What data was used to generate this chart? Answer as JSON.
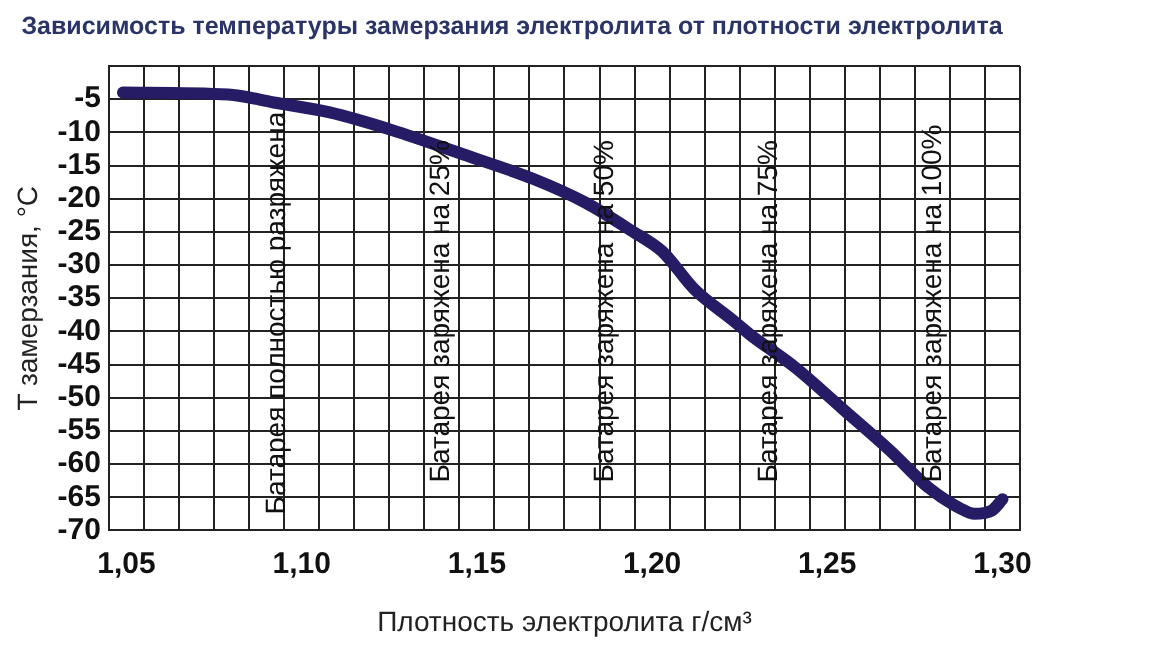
{
  "chart_data": {
    "type": "line",
    "title": "Зависимость температуры замерзания электролита от плотности электролита",
    "xlabel": "Плотность электролита г/см³",
    "ylabel": "T замерзания, °С",
    "x": [
      1.049,
      1.079,
      1.092,
      1.108,
      1.126,
      1.146,
      1.166,
      1.181,
      1.194,
      1.203,
      1.212,
      1.223,
      1.228,
      1.241,
      1.254,
      1.268,
      1.279,
      1.288,
      1.292,
      1.297,
      1.3
    ],
    "series": [
      {
        "color": "#261c66",
        "values": [
          -4,
          -4.3,
          -5.5,
          -7,
          -9.7,
          -13.3,
          -17,
          -20.6,
          -24.8,
          -28,
          -33.6,
          -38.3,
          -40.5,
          -45.5,
          -51.5,
          -58,
          -63.6,
          -66.7,
          -67.5,
          -67,
          -65.3
        ]
      }
    ],
    "xlim": [
      1.045,
      1.305
    ],
    "xticks": [
      {
        "value": 1.045,
        "label": null
      },
      {
        "value": 1.05,
        "label": "1,05"
      },
      {
        "value": 1.055,
        "label": null
      },
      {
        "value": 1.065,
        "label": null
      },
      {
        "value": 1.075,
        "label": null
      },
      {
        "value": 1.085,
        "label": null
      },
      {
        "value": 1.095,
        "label": null
      },
      {
        "value": 1.1,
        "label": "1,10"
      },
      {
        "value": 1.105,
        "label": null
      },
      {
        "value": 1.115,
        "label": null
      },
      {
        "value": 1.125,
        "label": null
      },
      {
        "value": 1.135,
        "label": null
      },
      {
        "value": 1.145,
        "label": null
      },
      {
        "value": 1.15,
        "label": "1,15"
      },
      {
        "value": 1.155,
        "label": null
      },
      {
        "value": 1.165,
        "label": null
      },
      {
        "value": 1.175,
        "label": null
      },
      {
        "value": 1.185,
        "label": null
      },
      {
        "value": 1.195,
        "label": null
      },
      {
        "value": 1.2,
        "label": "1,20"
      },
      {
        "value": 1.205,
        "label": null
      },
      {
        "value": 1.215,
        "label": null
      },
      {
        "value": 1.225,
        "label": null
      },
      {
        "value": 1.235,
        "label": null
      },
      {
        "value": 1.245,
        "label": null
      },
      {
        "value": 1.25,
        "label": "1,25"
      },
      {
        "value": 1.255,
        "label": null
      },
      {
        "value": 1.265,
        "label": null
      },
      {
        "value": 1.275,
        "label": null
      },
      {
        "value": 1.285,
        "label": null
      },
      {
        "value": 1.295,
        "label": null
      },
      {
        "value": 1.3,
        "label": "1,30"
      },
      {
        "value": 1.305,
        "label": null
      }
    ],
    "ylim": [
      -70,
      0
    ],
    "yticks": [
      -70,
      -65,
      -60,
      -55,
      -50,
      -45,
      -40,
      -35,
      -30,
      -25,
      -20,
      -15,
      -10,
      -5,
      {
        "value": 0,
        "label": null
      }
    ],
    "grid": true,
    "legend": false,
    "marker": "none",
    "line_style": "solid",
    "annotations": [
      "Батарея полностью разряжена",
      "Батарея заряжена на 25%",
      "Батарея заряжена на 50%",
      "Батарея заряжена на 75%",
      "Батарея заряжена на 100%"
    ]
  }
}
